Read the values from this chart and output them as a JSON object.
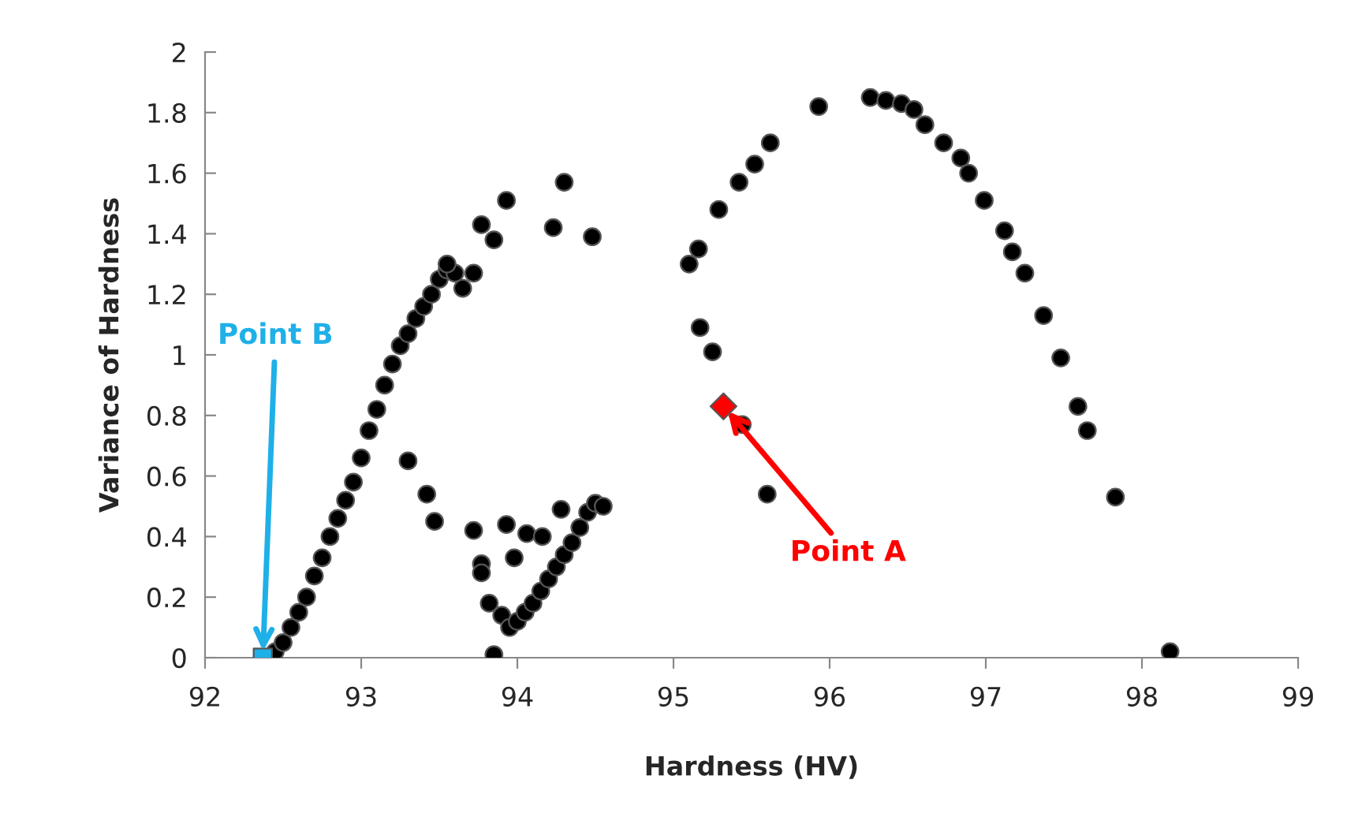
{
  "chart_data": {
    "type": "scatter",
    "xlabel": "Hardness (HV)",
    "ylabel": "Variance of Hardness",
    "xlim": [
      92,
      99
    ],
    "xticks": [
      92,
      93,
      94,
      95,
      96,
      97,
      98,
      99
    ],
    "ylim": [
      0,
      2
    ],
    "yticks": [
      0,
      0.2,
      0.4,
      0.6,
      0.8,
      1,
      1.2,
      1.4,
      1.6,
      1.8,
      2
    ],
    "grid": false,
    "legend": false,
    "series": [
      {
        "color": "#000000",
        "marker": "circle",
        "x": [
          92.45,
          92.5,
          92.55,
          92.6,
          92.65,
          92.7,
          92.75,
          92.8,
          92.85,
          92.9,
          92.95,
          93.0,
          93.05,
          93.1,
          93.15,
          93.2,
          93.25,
          93.3,
          93.35,
          93.4,
          93.45,
          93.5,
          93.55,
          93.6,
          93.65,
          93.55,
          93.72,
          93.77,
          93.85,
          93.93,
          94.23,
          94.48,
          94.3,
          93.3,
          93.42,
          93.47,
          93.72,
          93.93,
          93.77,
          93.77,
          93.98,
          94.06,
          94.16,
          94.28,
          93.82,
          93.85,
          93.9,
          93.95,
          94.0,
          94.05,
          94.1,
          94.15,
          94.2,
          94.25,
          94.3,
          94.35,
          94.4,
          94.45,
          94.5,
          94.55,
          95.1,
          95.16,
          95.17,
          95.25,
          95.44,
          95.6,
          95.29,
          95.42,
          95.52,
          95.62,
          95.93,
          96.26,
          96.36,
          96.46,
          96.54,
          96.61,
          96.73,
          96.84,
          96.89,
          96.99,
          97.12,
          97.17,
          97.25,
          97.37,
          97.48,
          97.59,
          97.65,
          97.83,
          98.18
        ],
        "values": [
          0.02,
          0.05,
          0.1,
          0.15,
          0.2,
          0.27,
          0.33,
          0.4,
          0.46,
          0.52,
          0.58,
          0.66,
          0.75,
          0.82,
          0.9,
          0.97,
          1.03,
          1.07,
          1.12,
          1.16,
          1.2,
          1.25,
          1.28,
          1.27,
          1.22,
          1.3,
          1.27,
          1.43,
          1.38,
          1.51,
          1.42,
          1.39,
          1.57,
          0.65,
          0.54,
          0.45,
          0.42,
          0.44,
          0.31,
          0.28,
          0.33,
          0.41,
          0.4,
          0.49,
          0.18,
          0.01,
          0.14,
          0.1,
          0.12,
          0.15,
          0.18,
          0.22,
          0.26,
          0.3,
          0.34,
          0.38,
          0.43,
          0.48,
          0.51,
          0.5,
          1.3,
          1.35,
          1.09,
          1.01,
          0.77,
          0.54,
          1.48,
          1.57,
          1.63,
          1.7,
          1.82,
          1.85,
          1.84,
          1.83,
          1.81,
          1.76,
          1.7,
          1.65,
          1.6,
          1.51,
          1.41,
          1.34,
          1.27,
          1.13,
          0.99,
          0.83,
          0.75,
          0.53,
          0.02
        ]
      },
      {
        "color": "#ff0000",
        "marker": "diamond",
        "x": [
          95.32
        ],
        "values": [
          0.83
        ]
      },
      {
        "color": "#1fb0e8",
        "marker": "square",
        "x": [
          92.37
        ],
        "values": [
          0
        ]
      }
    ],
    "annotations": [
      {
        "text": "Point A",
        "x": 95.32,
        "y": 0.83
      },
      {
        "text": "Point B",
        "x": 92.37,
        "y": 0
      }
    ]
  }
}
